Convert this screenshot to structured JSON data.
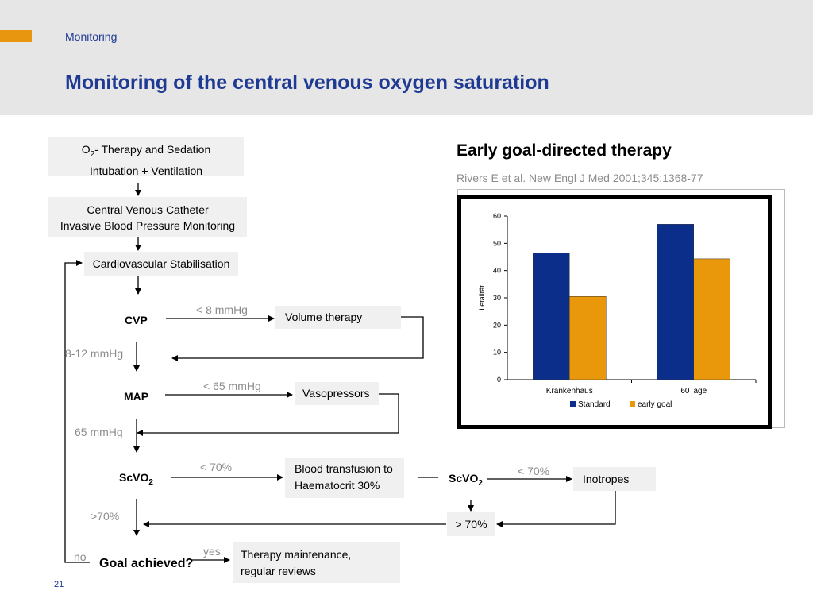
{
  "header": {
    "section": "Monitoring",
    "title": "Monitoring of the central venous oxygen saturation",
    "accent_color": "#e8960f",
    "title_color": "#1f3a93"
  },
  "flow": {
    "box1_line1_pre": "O",
    "box1_line1_sub": "2",
    "box1_line1_post": "- Therapy and Sedation",
    "box1_line2": "Intubation + Ventilation",
    "box2_line1": "Central Venous Catheter",
    "box2_line2": "Invasive Blood Pressure Monitoring",
    "stabilisation": "Cardiovascular Stabilisation",
    "cvp": "CVP",
    "cvp_low": "< 8 mmHg",
    "volume_therapy": "Volume therapy",
    "cvp_ok": "8-12 mmHg",
    "map": "MAP",
    "map_low": "< 65 mmHg",
    "vasopressors": "Vasopressors",
    "map_ok": "65 mmHg",
    "scvo2_main": "ScVO",
    "scvo2_sub": "2",
    "scvo2_low": "< 70%",
    "transfusion_line1": "Blood transfusion to",
    "transfusion_line2": "Haematocrit 30%",
    "scvo2_second": "ScVO",
    "scvo2_second_sub": "2",
    "scvo2_second_low": "< 70%",
    "inotropes": "Inotropes",
    "scvo2_ok": ">70%",
    "scvo2_ok_box": "> 70%",
    "no": "no",
    "goal": "Goal achieved?",
    "yes": "yes",
    "maintenance_line1": "Therapy maintenance,",
    "maintenance_line2": "regular reviews"
  },
  "reference": {
    "title": "Early goal-directed therapy",
    "citation": "Rivers E et al. New Engl J Med 2001;345:1368-77"
  },
  "chart_data": {
    "type": "bar",
    "categories": [
      "Krankenhaus",
      "60Tage"
    ],
    "series": [
      {
        "name": "Standard",
        "values": [
          46.5,
          57
        ],
        "color": "#0b2e8a"
      },
      {
        "name": "early goal",
        "values": [
          30.5,
          44.3
        ],
        "color": "#e8980a"
      }
    ],
    "ylabel": "Letalität",
    "xlabel": "",
    "ylim": [
      0,
      60
    ],
    "yticks": [
      0,
      10,
      20,
      30,
      40,
      50,
      60
    ],
    "grid": false,
    "legend_position": "bottom"
  },
  "footer": {
    "page_number": "21"
  }
}
